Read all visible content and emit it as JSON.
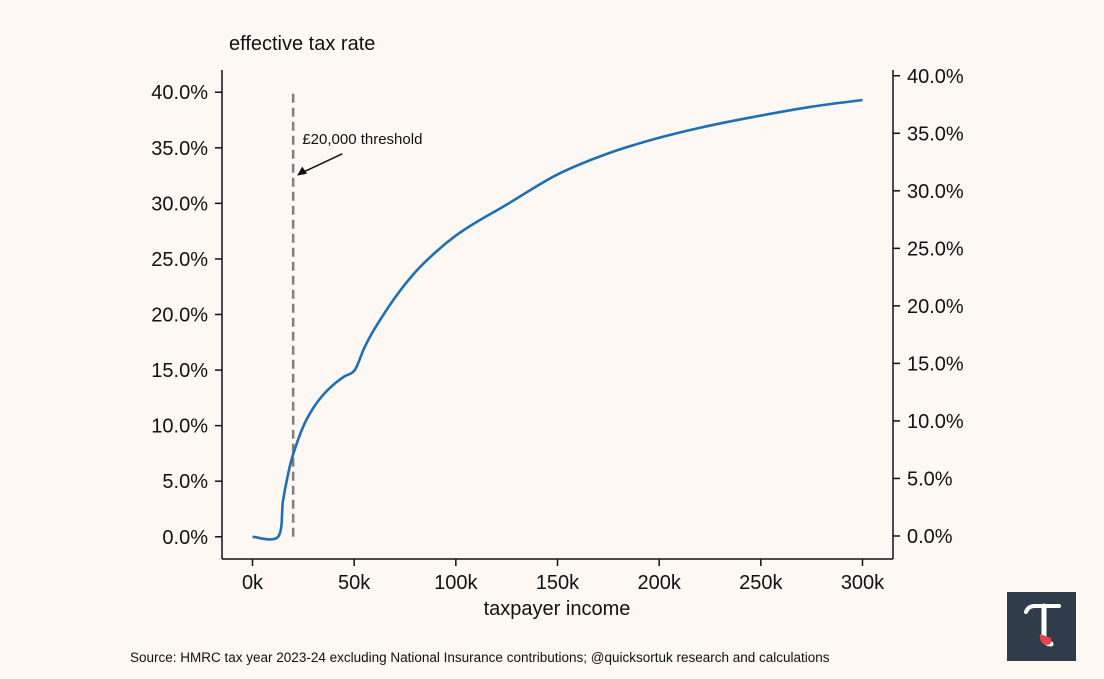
{
  "chart_data": {
    "type": "line",
    "y_title": "effective tax rate",
    "xlabel": "taxpayer income",
    "x_unit": "income (£)",
    "x_ticks": [
      {
        "value": 0,
        "label": "0k"
      },
      {
        "value": 50000,
        "label": "50k"
      },
      {
        "value": 100000,
        "label": "100k"
      },
      {
        "value": 150000,
        "label": "150k"
      },
      {
        "value": 200000,
        "label": "200k"
      },
      {
        "value": 250000,
        "label": "250k"
      },
      {
        "value": 300000,
        "label": "300k"
      }
    ],
    "xlim": [
      -15000,
      315000
    ],
    "left_y_ticks": [
      {
        "value": 0,
        "label": "0.0%"
      },
      {
        "value": 5,
        "label": "5.0%"
      },
      {
        "value": 10,
        "label": "10.0%"
      },
      {
        "value": 15,
        "label": "15.0%"
      },
      {
        "value": 20,
        "label": "20.0%"
      },
      {
        "value": 25,
        "label": "25.0%"
      },
      {
        "value": 30,
        "label": "30.0%"
      },
      {
        "value": 35,
        "label": "35.0%"
      },
      {
        "value": 40,
        "label": "40.0%"
      }
    ],
    "right_y_ticks": [
      {
        "value": 0,
        "label": "0.0%"
      },
      {
        "value": 5,
        "label": "5.0%"
      },
      {
        "value": 10,
        "label": "10.0%"
      },
      {
        "value": 15,
        "label": "15.0%"
      },
      {
        "value": 20,
        "label": "20.0%"
      },
      {
        "value": 25,
        "label": "25.0%"
      },
      {
        "value": 30,
        "label": "30.0%"
      },
      {
        "value": 35,
        "label": "35.0%"
      },
      {
        "value": 40,
        "label": "40.0%"
      }
    ],
    "left_ylim": [
      -2,
      42
    ],
    "right_ylim": [
      -2,
      40.5
    ],
    "series": [
      {
        "name": "effective tax rate",
        "color": "#1f6fb2",
        "x": [
          0,
          12570,
          15000,
          17500,
          20000,
          25000,
          30000,
          35000,
          40000,
          45000,
          50270,
          55000,
          60000,
          70000,
          80000,
          90000,
          100000,
          110000,
          125140,
          150000,
          175000,
          200000,
          225000,
          250000,
          275000,
          300000
        ],
        "y": [
          0,
          0,
          3.24,
          5.64,
          7.43,
          9.94,
          11.62,
          12.82,
          13.71,
          14.41,
          15.0,
          17.0,
          18.7,
          21.5,
          23.8,
          25.6,
          27.1,
          28.3,
          29.9,
          32.6,
          34.5,
          35.9,
          37.0,
          37.9,
          38.7,
          39.3
        ]
      }
    ],
    "threshold": {
      "x": 20000,
      "y_range": [
        0,
        40
      ],
      "color": "#808080"
    },
    "annotation": {
      "text": "£20,000 threshold",
      "x": 20000,
      "y": 32.5,
      "text_x": 24500,
      "text_y": 35
    }
  },
  "source_note": "Source: HMRC tax year 2023-24 excluding National Insurance contributions; @quicksortuk research and calculations",
  "logo": {
    "glyph": "τ",
    "background": "#2f3d4a",
    "glyph_color": "#ffffff",
    "accent": "#e8434a"
  }
}
